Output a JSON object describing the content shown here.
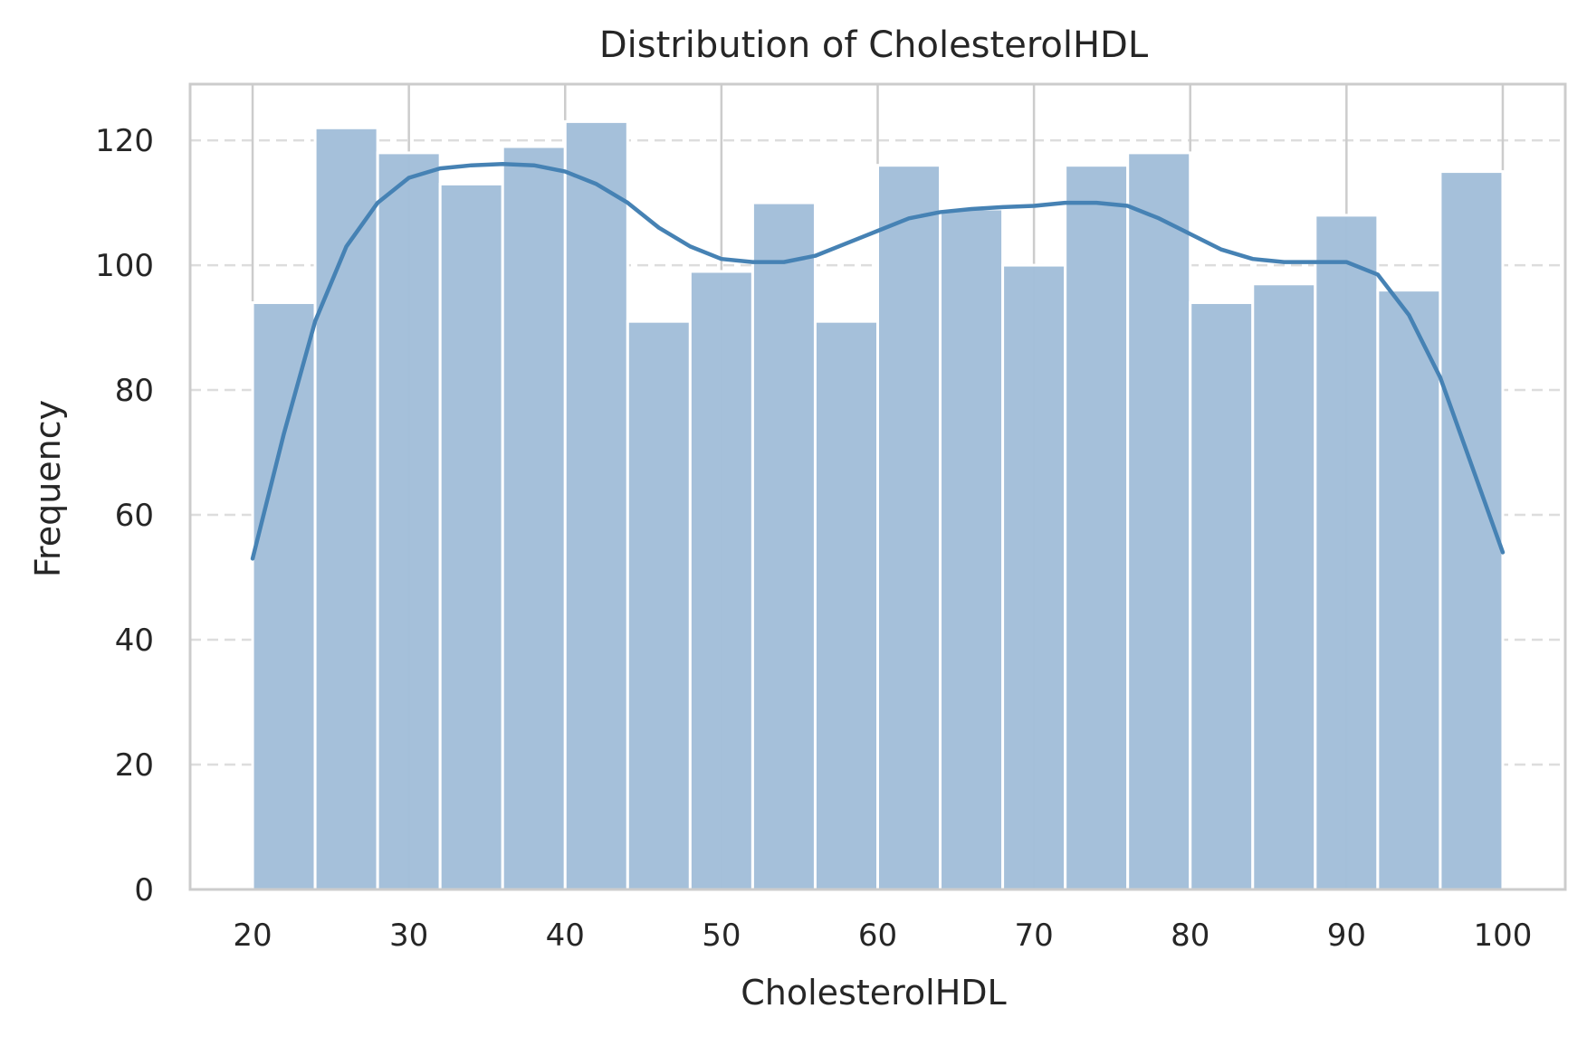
{
  "chart_data": {
    "type": "bar",
    "subtype": "histogram-with-kde",
    "title": "Distribution of CholesterolHDL",
    "xlabel": "CholesterolHDL",
    "ylabel": "Frequency",
    "xlim": [
      16,
      104
    ],
    "ylim": [
      0,
      129
    ],
    "xticks": [
      20,
      30,
      40,
      50,
      60,
      70,
      80,
      90,
      100
    ],
    "yticks": [
      0,
      20,
      40,
      60,
      80,
      100,
      120
    ],
    "grid": {
      "x": "solid",
      "y": "dashed"
    },
    "legend": "none",
    "bins": [
      {
        "x0": 20,
        "x1": 24,
        "count": 94
      },
      {
        "x0": 24,
        "x1": 28,
        "count": 122
      },
      {
        "x0": 28,
        "x1": 32,
        "count": 118
      },
      {
        "x0": 32,
        "x1": 36,
        "count": 113
      },
      {
        "x0": 36,
        "x1": 40,
        "count": 119
      },
      {
        "x0": 40,
        "x1": 44,
        "count": 123
      },
      {
        "x0": 44,
        "x1": 48,
        "count": 91
      },
      {
        "x0": 48,
        "x1": 52,
        "count": 99
      },
      {
        "x0": 52,
        "x1": 56,
        "count": 110
      },
      {
        "x0": 56,
        "x1": 60,
        "count": 91
      },
      {
        "x0": 60,
        "x1": 64,
        "count": 116
      },
      {
        "x0": 64,
        "x1": 68,
        "count": 109
      },
      {
        "x0": 68,
        "x1": 72,
        "count": 100
      },
      {
        "x0": 72,
        "x1": 76,
        "count": 116
      },
      {
        "x0": 76,
        "x1": 80,
        "count": 118
      },
      {
        "x0": 80,
        "x1": 84,
        "count": 94
      },
      {
        "x0": 84,
        "x1": 88,
        "count": 97
      },
      {
        "x0": 88,
        "x1": 92,
        "count": 108
      },
      {
        "x0": 92,
        "x1": 96,
        "count": 96
      },
      {
        "x0": 96,
        "x1": 100,
        "count": 115
      }
    ],
    "kde": {
      "x": [
        20,
        22,
        24,
        26,
        28,
        30,
        32,
        34,
        36,
        38,
        40,
        42,
        44,
        46,
        48,
        50,
        52,
        54,
        56,
        58,
        60,
        62,
        64,
        66,
        68,
        70,
        72,
        74,
        76,
        78,
        80,
        82,
        84,
        86,
        88,
        90,
        92,
        94,
        96,
        98,
        100
      ],
      "y": [
        53,
        73,
        91,
        103,
        110,
        114,
        115.5,
        116,
        116.2,
        116,
        115,
        113,
        110,
        106,
        103,
        101,
        100.5,
        100.5,
        101.5,
        103.5,
        105.5,
        107.5,
        108.5,
        109,
        109.3,
        109.5,
        110,
        110,
        109.5,
        107.5,
        105,
        102.5,
        101,
        100.5,
        100.5,
        100.5,
        98.5,
        92,
        82,
        68,
        54
      ]
    },
    "colors": {
      "bar": "#a3bfd9",
      "kde": "#4682b4",
      "grid": "#dddddd",
      "frame": "#cccccc"
    }
  }
}
